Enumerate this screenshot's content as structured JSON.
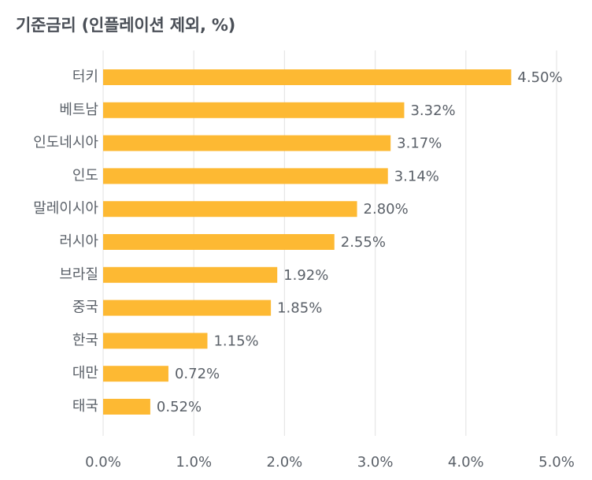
{
  "chart_data": {
    "type": "bar",
    "orientation": "horizontal",
    "title": "기준금리 (인플레이션 제외, %)",
    "categories": [
      "터키",
      "베트남",
      "인도네시아",
      "인도",
      "말레이시아",
      "러시아",
      "브라질",
      "중국",
      "한국",
      "대만",
      "태국"
    ],
    "values": [
      4.5,
      3.32,
      3.17,
      3.14,
      2.8,
      2.55,
      1.92,
      1.85,
      1.15,
      0.72,
      0.52
    ],
    "value_labels": [
      "4.50%",
      "3.32%",
      "3.17%",
      "3.14%",
      "2.80%",
      "2.55%",
      "1.92%",
      "1.85%",
      "1.15%",
      "0.72%",
      "0.52%"
    ],
    "xlim": [
      0,
      5
    ],
    "x_ticks": [
      0,
      1,
      2,
      3,
      4,
      5
    ],
    "x_tick_labels": [
      "0.0%",
      "1.0%",
      "2.0%",
      "3.0%",
      "4.0%",
      "5.0%"
    ],
    "xlabel": "",
    "ylabel": "",
    "grid": "vertical",
    "bar_color": "#FDB933",
    "grid_color": "#E6E6E6",
    "text_color": "#5A6068",
    "title_color": "#4A4F57"
  }
}
